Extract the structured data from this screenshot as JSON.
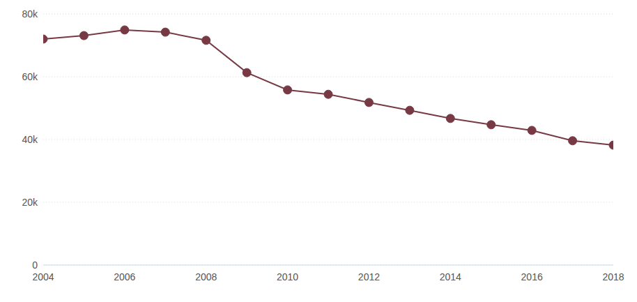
{
  "chart_data": {
    "type": "line",
    "x": [
      2004,
      2005,
      2006,
      2007,
      2008,
      2009,
      2010,
      2011,
      2012,
      2013,
      2014,
      2015,
      2016,
      2017,
      2018
    ],
    "series": [
      {
        "name": null,
        "color": "#773a45",
        "marker": "circle",
        "values": [
          72000,
          73100,
          74900,
          74200,
          71600,
          61300,
          55800,
          54400,
          51800,
          49300,
          46700,
          44700,
          42900,
          39600,
          38200
        ]
      }
    ],
    "xlim": [
      2004,
      2018
    ],
    "xticks": [
      2004,
      2006,
      2008,
      2010,
      2012,
      2014,
      2016,
      2018
    ],
    "ylim": [
      0,
      80000
    ],
    "yticks": [
      {
        "value": 0,
        "label": "0"
      },
      {
        "value": 20000,
        "label": "20k"
      },
      {
        "value": 40000,
        "label": "40k"
      },
      {
        "value": 60000,
        "label": "60k"
      },
      {
        "value": 80000,
        "label": "80k"
      }
    ],
    "grid": true
  }
}
